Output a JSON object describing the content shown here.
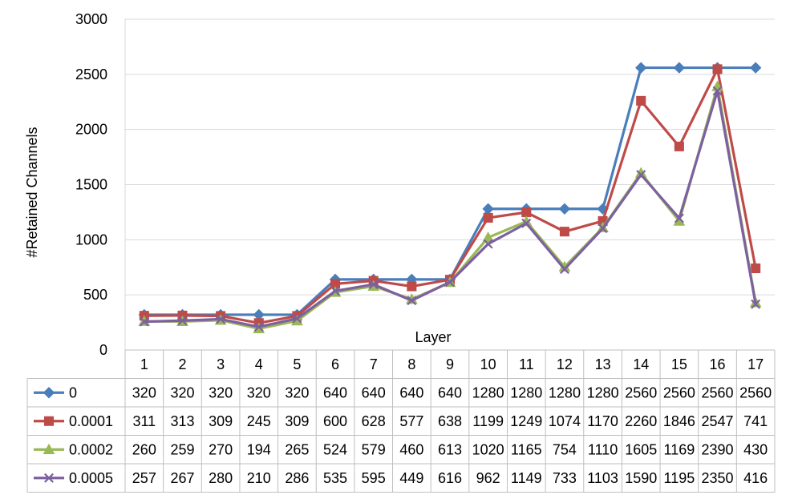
{
  "chart_data": {
    "type": "line",
    "xlabel": "Layer",
    "ylabel": "#Retained Channels",
    "ylim": [
      0,
      3000
    ],
    "yticks": [
      0,
      500,
      1000,
      1500,
      2000,
      2500,
      3000
    ],
    "categories": [
      "1",
      "2",
      "3",
      "4",
      "5",
      "6",
      "7",
      "8",
      "9",
      "10",
      "11",
      "12",
      "13",
      "14",
      "15",
      "16",
      "17"
    ],
    "grid": "horizontal",
    "legend": "data-table-left",
    "series": [
      {
        "name": "0",
        "color": "#4a7ebb",
        "marker": "diamond",
        "values": [
          320,
          320,
          320,
          320,
          320,
          640,
          640,
          640,
          640,
          1280,
          1280,
          1280,
          1280,
          2560,
          2560,
          2560,
          2560
        ]
      },
      {
        "name": "0.0001",
        "color": "#be4b48",
        "marker": "square",
        "values": [
          311,
          313,
          309,
          245,
          309,
          600,
          628,
          577,
          638,
          1199,
          1249,
          1074,
          1170,
          2260,
          1846,
          2547,
          741
        ]
      },
      {
        "name": "0.0002",
        "color": "#98b954",
        "marker": "triangle",
        "values": [
          260,
          259,
          270,
          194,
          265,
          524,
          579,
          460,
          613,
          1020,
          1165,
          754,
          1110,
          1605,
          1169,
          2390,
          430
        ]
      },
      {
        "name": "0.0005",
        "color": "#7d60a0",
        "marker": "x",
        "values": [
          257,
          267,
          280,
          210,
          286,
          535,
          595,
          449,
          616,
          962,
          1149,
          733,
          1103,
          1590,
          1195,
          2350,
          416
        ]
      }
    ]
  }
}
